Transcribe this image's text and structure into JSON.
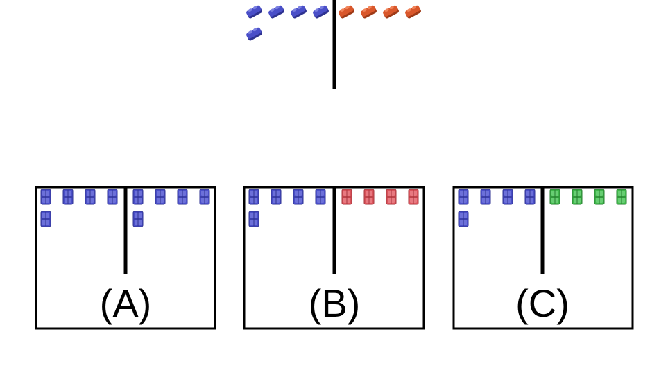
{
  "colors": {
    "blue": "#4a4fc8",
    "blue_light": "#7a7fe0",
    "blue_dark": "#2e3290",
    "orange": "#d9572b",
    "orange_light": "#f0845a",
    "orange_dark": "#9e3a17",
    "red": "#d9535b",
    "red_light": "#ee8a90",
    "red_dark": "#a5343b",
    "green": "#3fb54a",
    "green_light": "#79d883",
    "green_dark": "#267b2e",
    "line": "#000000",
    "background": "#ffffff"
  },
  "reference": {
    "left_group": {
      "color": "blue",
      "count": 5,
      "icon": "blue-block-icon"
    },
    "right_group": {
      "color": "orange",
      "count": 4,
      "icon": "orange-block-icon"
    }
  },
  "options": [
    {
      "label": "(A)",
      "left_group": {
        "color": "blue",
        "count": 5
      },
      "right_group": {
        "color": "blue",
        "count": 5
      }
    },
    {
      "label": "(B)",
      "left_group": {
        "color": "blue",
        "count": 5
      },
      "right_group": {
        "color": "red",
        "count": 4
      }
    },
    {
      "label": "(C)",
      "left_group": {
        "color": "blue",
        "count": 5
      },
      "right_group": {
        "color": "green",
        "count": 4
      }
    }
  ]
}
